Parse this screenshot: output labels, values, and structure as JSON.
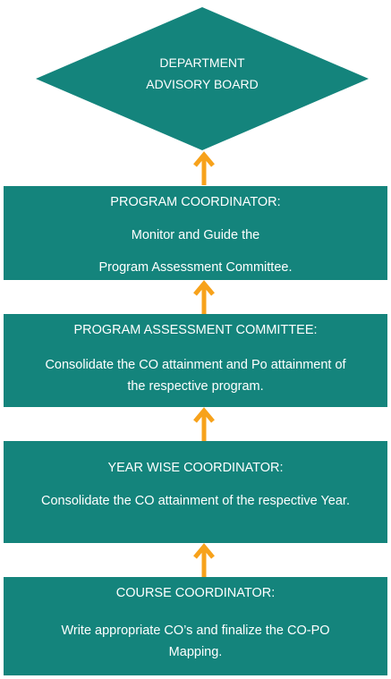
{
  "colors": {
    "box_fill": "#14847c",
    "box_text": "#ffffff",
    "arrow": "#f7a21b"
  },
  "top": {
    "line1": "DEPARTMENT",
    "line2": "ADVISORY BOARD"
  },
  "boxes": [
    {
      "title": "PROGRAM COORDINATOR:",
      "line1": "Monitor and Guide the",
      "line2": "Program Assessment Committee."
    },
    {
      "title": "PROGRAM ASSESSMENT COMMITTEE:",
      "line1": "Consolidate the CO attainment and Po attainment of",
      "line2": "the respective program."
    },
    {
      "title": "YEAR WISE COORDINATOR:",
      "line1": "Consolidate the CO attainment of the respective Year."
    },
    {
      "title": "COURSE COORDINATOR:",
      "line1": "Write appropriate CO’s and finalize the CO-PO",
      "line2": "Mapping."
    }
  ]
}
